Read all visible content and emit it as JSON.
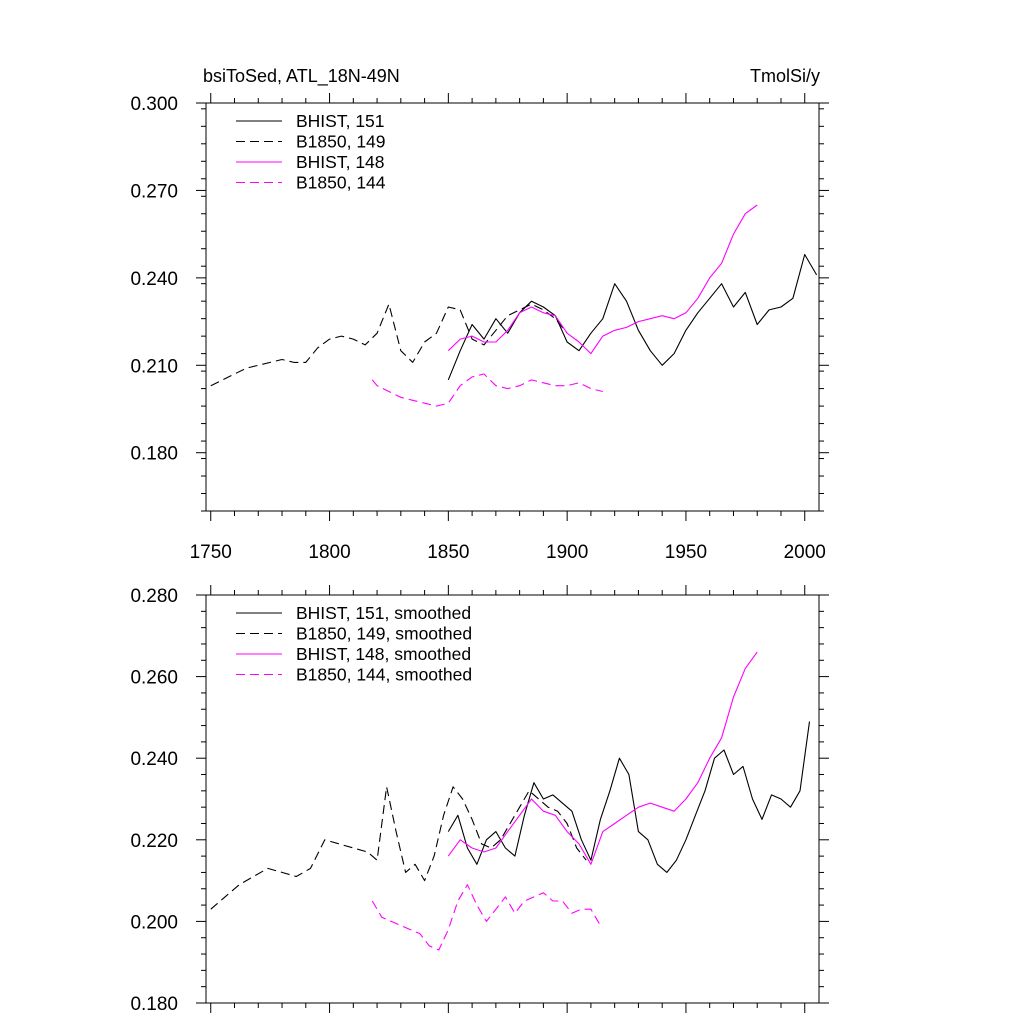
{
  "chart_data": [
    {
      "type": "line",
      "title": "",
      "title_left": "bsiToSed, ATL_18N-49N",
      "title_right": "TmolSi/y",
      "xlabel": "",
      "ylabel": "",
      "xlim": [
        1748,
        2006
      ],
      "ylim": [
        0.16,
        0.3
      ],
      "x_ticks": [
        1750,
        1800,
        1850,
        1900,
        1950,
        2000
      ],
      "x_tick_labels": [
        "1750",
        "1800",
        "1850",
        "1900",
        "1950",
        "2000"
      ],
      "y_ticks": [
        0.18,
        0.21,
        0.24,
        0.27,
        0.3
      ],
      "y_tick_labels": [
        "0.180",
        "0.210",
        "0.240",
        "0.270",
        "0.300"
      ],
      "grid": false,
      "legend_position": "top-left",
      "series": [
        {
          "name": "BHIST, 151",
          "color": "#000000",
          "dash": "solid",
          "x": [
            1850,
            1855,
            1860,
            1865,
            1870,
            1875,
            1880,
            1885,
            1890,
            1895,
            1900,
            1905,
            1910,
            1915,
            1920,
            1925,
            1930,
            1935,
            1940,
            1945,
            1950,
            1955,
            1960,
            1965,
            1970,
            1975,
            1980,
            1985,
            1990,
            1995,
            2000,
            2005
          ],
          "y": [
            0.205,
            0.215,
            0.224,
            0.219,
            0.226,
            0.221,
            0.228,
            0.232,
            0.23,
            0.227,
            0.218,
            0.215,
            0.221,
            0.226,
            0.238,
            0.232,
            0.222,
            0.215,
            0.21,
            0.214,
            0.222,
            0.228,
            0.233,
            0.238,
            0.23,
            0.235,
            0.224,
            0.229,
            0.23,
            0.233,
            0.248,
            0.241
          ]
        },
        {
          "name": "B1850, 149",
          "color": "#000000",
          "dash": "dashed",
          "x": [
            1750,
            1755,
            1760,
            1765,
            1770,
            1775,
            1780,
            1785,
            1790,
            1795,
            1800,
            1805,
            1810,
            1815,
            1820,
            1825,
            1830,
            1835,
            1840,
            1845,
            1850,
            1855,
            1860,
            1865,
            1870,
            1875,
            1880,
            1885,
            1890,
            1895,
            1900
          ],
          "y": [
            0.203,
            0.205,
            0.207,
            0.209,
            0.21,
            0.211,
            0.212,
            0.211,
            0.211,
            0.216,
            0.219,
            0.22,
            0.219,
            0.217,
            0.221,
            0.231,
            0.215,
            0.211,
            0.218,
            0.221,
            0.23,
            0.229,
            0.219,
            0.217,
            0.222,
            0.227,
            0.229,
            0.231,
            0.229,
            0.226,
            0.221
          ]
        },
        {
          "name": "BHIST, 148",
          "color": "#ff00ff",
          "dash": "solid",
          "x": [
            1850,
            1855,
            1860,
            1865,
            1870,
            1875,
            1880,
            1885,
            1890,
            1895,
            1900,
            1905,
            1910,
            1915,
            1920,
            1925,
            1930,
            1935,
            1940,
            1945,
            1950,
            1955,
            1960,
            1965,
            1970,
            1975,
            1980
          ],
          "y": [
            0.215,
            0.219,
            0.22,
            0.218,
            0.218,
            0.222,
            0.228,
            0.23,
            0.228,
            0.227,
            0.221,
            0.218,
            0.214,
            0.22,
            0.222,
            0.223,
            0.225,
            0.226,
            0.227,
            0.226,
            0.228,
            0.233,
            0.24,
            0.245,
            0.255,
            0.262,
            0.265
          ]
        },
        {
          "name": "B1850, 144",
          "color": "#ff00ff",
          "dash": "dashed",
          "x": [
            1818,
            1820,
            1825,
            1830,
            1835,
            1840,
            1845,
            1850,
            1855,
            1860,
            1865,
            1870,
            1875,
            1880,
            1885,
            1890,
            1895,
            1900,
            1905,
            1910,
            1915
          ],
          "y": [
            0.205,
            0.203,
            0.201,
            0.199,
            0.198,
            0.197,
            0.196,
            0.197,
            0.203,
            0.206,
            0.207,
            0.203,
            0.202,
            0.203,
            0.205,
            0.204,
            0.203,
            0.203,
            0.204,
            0.202,
            0.201
          ]
        }
      ]
    },
    {
      "type": "line",
      "title": "",
      "xlabel": "",
      "ylabel": "",
      "xlim": [
        1748,
        2006
      ],
      "ylim": [
        0.18,
        0.28
      ],
      "x_ticks": [
        1750,
        1800,
        1850,
        1900,
        1950,
        2000
      ],
      "x_tick_labels": [],
      "y_ticks": [
        0.18,
        0.2,
        0.22,
        0.24,
        0.26,
        0.28
      ],
      "y_tick_labels": [
        "0.180",
        "0.200",
        "0.220",
        "0.240",
        "0.260",
        "0.280"
      ],
      "grid": false,
      "legend_position": "top-left",
      "series": [
        {
          "name": "BHIST, 151, smoothed",
          "color": "#000000",
          "dash": "solid",
          "x": [
            1850,
            1854,
            1858,
            1862,
            1866,
            1870,
            1874,
            1878,
            1882,
            1886,
            1890,
            1894,
            1898,
            1902,
            1906,
            1910,
            1914,
            1918,
            1922,
            1926,
            1930,
            1934,
            1938,
            1942,
            1946,
            1950,
            1954,
            1958,
            1962,
            1966,
            1970,
            1974,
            1978,
            1982,
            1986,
            1990,
            1994,
            1998,
            2002
          ],
          "y": [
            0.222,
            0.226,
            0.218,
            0.214,
            0.22,
            0.222,
            0.218,
            0.216,
            0.226,
            0.234,
            0.23,
            0.231,
            0.229,
            0.227,
            0.22,
            0.215,
            0.225,
            0.232,
            0.24,
            0.236,
            0.222,
            0.22,
            0.214,
            0.212,
            0.215,
            0.22,
            0.226,
            0.232,
            0.24,
            0.242,
            0.236,
            0.238,
            0.23,
            0.225,
            0.231,
            0.23,
            0.228,
            0.232,
            0.249
          ]
        },
        {
          "name": "B1850, 149, smoothed",
          "color": "#000000",
          "dash": "dashed",
          "x": [
            1750,
            1756,
            1762,
            1768,
            1774,
            1780,
            1786,
            1792,
            1798,
            1804,
            1810,
            1816,
            1820,
            1824,
            1828,
            1832,
            1836,
            1840,
            1844,
            1848,
            1852,
            1856,
            1860,
            1864,
            1868,
            1872,
            1876,
            1880,
            1884,
            1888,
            1892,
            1896,
            1900,
            1904,
            1908
          ],
          "y": [
            0.203,
            0.206,
            0.209,
            0.211,
            0.213,
            0.212,
            0.211,
            0.213,
            0.22,
            0.219,
            0.218,
            0.217,
            0.215,
            0.233,
            0.222,
            0.212,
            0.214,
            0.21,
            0.216,
            0.226,
            0.233,
            0.23,
            0.225,
            0.219,
            0.218,
            0.22,
            0.224,
            0.228,
            0.232,
            0.23,
            0.228,
            0.227,
            0.224,
            0.218,
            0.215
          ]
        },
        {
          "name": "BHIST, 148, smoothed",
          "color": "#ff00ff",
          "dash": "solid",
          "x": [
            1850,
            1855,
            1860,
            1865,
            1870,
            1875,
            1880,
            1885,
            1890,
            1895,
            1900,
            1905,
            1910,
            1915,
            1920,
            1925,
            1930,
            1935,
            1940,
            1945,
            1950,
            1955,
            1960,
            1965,
            1970,
            1975,
            1980
          ],
          "y": [
            0.216,
            0.22,
            0.218,
            0.217,
            0.218,
            0.222,
            0.226,
            0.23,
            0.227,
            0.226,
            0.222,
            0.219,
            0.214,
            0.222,
            0.224,
            0.226,
            0.228,
            0.229,
            0.228,
            0.227,
            0.23,
            0.234,
            0.24,
            0.245,
            0.255,
            0.262,
            0.266
          ]
        },
        {
          "name": "B1850, 144, smoothed",
          "color": "#ff00ff",
          "dash": "dashed",
          "x": [
            1818,
            1822,
            1826,
            1830,
            1834,
            1838,
            1842,
            1846,
            1850,
            1854,
            1858,
            1862,
            1866,
            1870,
            1874,
            1878,
            1882,
            1886,
            1890,
            1894,
            1898,
            1902,
            1906,
            1910,
            1914
          ],
          "y": [
            0.205,
            0.201,
            0.2,
            0.199,
            0.198,
            0.197,
            0.194,
            0.193,
            0.198,
            0.205,
            0.209,
            0.204,
            0.2,
            0.203,
            0.206,
            0.202,
            0.205,
            0.206,
            0.207,
            0.205,
            0.205,
            0.202,
            0.203,
            0.203,
            0.199
          ]
        }
      ]
    }
  ]
}
